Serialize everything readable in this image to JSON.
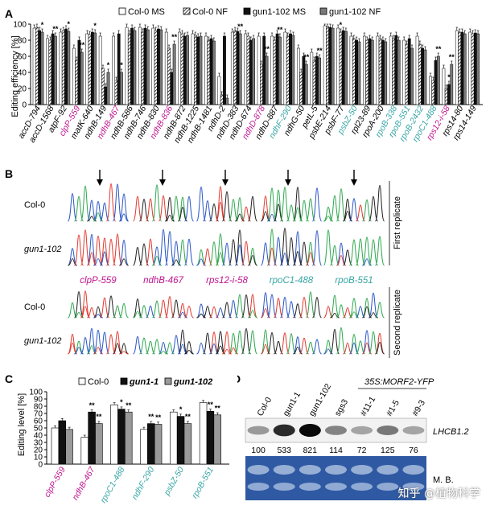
{
  "colors": {
    "col0_ms": "#ffffff",
    "col0_nf": "#bdbdbd",
    "gun_ms": "#111111",
    "gun_nf": "#7a7a7a",
    "magenta": "#c0158f",
    "teal": "#3aa6a6",
    "trace_A": "#2fa84f",
    "trace_C": "#2a56c6",
    "trace_G": "#222222",
    "trace_T": "#e03a2f",
    "gel_bg": "#2f5aa3"
  },
  "panelA": {
    "letter": "A",
    "legend": [
      "Col-0 MS",
      "Col-0 NF",
      "gun1-102 MS",
      "gun1-102 NF"
    ],
    "chart_data": {
      "type": "bar",
      "ylabel": "Editing efficiency [%]",
      "ylim": [
        0,
        100
      ],
      "yticks": [
        0,
        20,
        40,
        60,
        80,
        100
      ],
      "series_names": [
        "Col-0 MS",
        "Col-0 NF",
        "gun1-102 MS",
        "gun1-102 NF"
      ],
      "sites": [
        {
          "name": "accD-794",
          "color": "black",
          "values": [
            95,
            96,
            92,
            90
          ],
          "stars": [
            {
              "series": 3,
              "text": "*"
            }
          ]
        },
        {
          "name": "accD-1568",
          "color": "black",
          "values": [
            82,
            80,
            88,
            85
          ],
          "stars": [
            {
              "series": 3,
              "text": "**"
            }
          ]
        },
        {
          "name": "atpF-92",
          "color": "black",
          "values": [
            90,
            92,
            94,
            91
          ],
          "stars": [
            {
              "series": 3,
              "text": "*"
            }
          ]
        },
        {
          "name": "clpP-559",
          "color": "magenta",
          "values": [
            70,
            55,
            80,
            65
          ],
          "stars": [
            {
              "series": 3,
              "text": "**"
            }
          ]
        },
        {
          "name": "matK-640",
          "color": "black",
          "values": [
            88,
            87,
            90,
            89
          ],
          "stars": [
            {
              "series": 3,
              "text": "*"
            }
          ]
        },
        {
          "name": "ndhB-149",
          "color": "black",
          "values": [
            85,
            45,
            22,
            40
          ],
          "stars": [
            {
              "series": 3,
              "text": "*"
            }
          ]
        },
        {
          "name": "ndhB-467",
          "color": "magenta",
          "values": [
            85,
            30,
            88,
            40
          ],
          "stars": [
            {
              "series": 3,
              "text": "*"
            }
          ]
        },
        {
          "name": "ndhB-586",
          "color": "black",
          "values": [
            96,
            88,
            95,
            92
          ],
          "stars": []
        },
        {
          "name": "ndhB-746",
          "color": "black",
          "values": [
            96,
            90,
            95,
            93
          ],
          "stars": []
        },
        {
          "name": "ndhB-830",
          "color": "black",
          "values": [
            95,
            92,
            94,
            93
          ],
          "stars": []
        },
        {
          "name": "ndhB-836",
          "color": "magenta",
          "values": [
            90,
            70,
            40,
            75
          ],
          "stars": [
            {
              "series": 3,
              "text": "**"
            }
          ]
        },
        {
          "name": "ndhB-872",
          "color": "black",
          "values": [
            90,
            88,
            85,
            86
          ],
          "stars": []
        },
        {
          "name": "ndhB-1225",
          "color": "black",
          "values": [
            88,
            86,
            84,
            85
          ],
          "stars": []
        },
        {
          "name": "ndhB-1481",
          "color": "black",
          "values": [
            85,
            80,
            82,
            79
          ],
          "stars": []
        },
        {
          "name": "ndhD-2",
          "color": "black",
          "values": [
            35,
            12,
            85,
            8
          ],
          "stars": []
        },
        {
          "name": "ndhD-383",
          "color": "black",
          "values": [
            90,
            92,
            91,
            88
          ],
          "stars": [
            {
              "series": 3,
              "text": "**"
            }
          ]
        },
        {
          "name": "ndhD-674",
          "color": "black",
          "values": [
            88,
            85,
            80,
            82
          ],
          "stars": []
        },
        {
          "name": "ndhD-878",
          "color": "magenta",
          "values": [
            85,
            50,
            85,
            60
          ],
          "stars": [
            {
              "series": 3,
              "text": "**"
            }
          ]
        },
        {
          "name": "ndhD-887",
          "color": "black",
          "values": [
            85,
            80,
            88,
            84
          ],
          "stars": [
            {
              "series": 3,
              "text": "**"
            }
          ]
        },
        {
          "name": "ndhF-290",
          "color": "teal",
          "values": [
            90,
            85,
            88,
            86
          ],
          "stars": []
        },
        {
          "name": "ndhG-50",
          "color": "black",
          "values": [
            70,
            40,
            60,
            50
          ],
          "stars": [
            {
              "series": 3,
              "text": "**"
            }
          ]
        },
        {
          "name": "petL-5",
          "color": "black",
          "values": [
            65,
            55,
            60,
            58
          ],
          "stars": [
            {
              "series": 3,
              "text": "**"
            }
          ]
        },
        {
          "name": "psbE-214",
          "color": "black",
          "values": [
            98,
            97,
            96,
            95
          ],
          "stars": []
        },
        {
          "name": "psbF-77",
          "color": "black",
          "values": [
            95,
            90,
            92,
            91
          ],
          "stars": [
            {
              "series": 1,
              "text": "*"
            }
          ]
        },
        {
          "name": "psbZ-50",
          "color": "teal",
          "values": [
            85,
            82,
            80,
            78
          ],
          "stars": []
        },
        {
          "name": "rpl23-89",
          "color": "black",
          "values": [
            85,
            80,
            82,
            80
          ],
          "stars": []
        },
        {
          "name": "rpoA-200",
          "color": "black",
          "values": [
            85,
            82,
            80,
            78
          ],
          "stars": []
        },
        {
          "name": "rpoB-338",
          "color": "teal",
          "values": [
            85,
            82,
            86,
            80
          ],
          "stars": []
        },
        {
          "name": "rpoB-551",
          "color": "teal",
          "values": [
            80,
            75,
            82,
            70
          ],
          "stars": []
        },
        {
          "name": "rpoB-2432",
          "color": "teal",
          "values": [
            85,
            75,
            70,
            68
          ],
          "stars": []
        },
        {
          "name": "rpoC1-488",
          "color": "teal",
          "values": [
            35,
            30,
            55,
            60
          ],
          "stars": [
            {
              "series": 3,
              "text": "**"
            }
          ]
        },
        {
          "name": "rps12-i-58",
          "color": "magenta",
          "values": [
            45,
            20,
            25,
            50
          ],
          "stars": [
            {
              "series": 2,
              "text": "*"
            },
            {
              "series": 3,
              "text": "**"
            }
          ]
        },
        {
          "name": "rps14-80",
          "color": "black",
          "values": [
            92,
            90,
            90,
            88
          ],
          "stars": []
        },
        {
          "name": "rps14-149",
          "color": "black",
          "values": [
            90,
            88,
            89,
            88
          ],
          "stars": []
        }
      ]
    }
  },
  "panelB": {
    "letter": "B",
    "first_replicate": "First replicate",
    "second_replicate": "Second replicate",
    "row_labels": [
      "Col-0",
      "gun1-102",
      "Col-0",
      "gun1-102"
    ],
    "sites": [
      {
        "name": "clpP-559",
        "color": "magenta"
      },
      {
        "name": "ndhB-467",
        "color": "magenta"
      },
      {
        "name": "rps12-i-58",
        "color": "magenta"
      },
      {
        "name": "rpoC1-488",
        "color": "teal"
      },
      {
        "name": "rpoB-551",
        "color": "teal"
      }
    ]
  },
  "panelC": {
    "letter": "C",
    "legend": [
      "Col-0",
      "gun1-1",
      "gun1-102"
    ],
    "chart_data": {
      "type": "bar",
      "ylabel": "Editing level [%]",
      "ylim": [
        0,
        100
      ],
      "yticks": [
        0,
        10,
        20,
        30,
        40,
        50,
        60,
        70,
        80,
        90,
        100
      ],
      "series": [
        {
          "name": "Col-0",
          "values": [
            50,
            37,
            82,
            48,
            72,
            85
          ]
        },
        {
          "name": "gun1-1",
          "values": [
            60,
            72,
            76,
            56,
            66,
            73
          ]
        },
        {
          "name": "gun1-102",
          "values": [
            48,
            56,
            72,
            55,
            56,
            68
          ]
        }
      ],
      "categories": [
        {
          "name": "clpP-559",
          "color": "magenta",
          "stars": []
        },
        {
          "name": "ndhB-467",
          "color": "magenta",
          "stars": [
            {
              "series": 1,
              "text": "**"
            },
            {
              "series": 2,
              "text": "**"
            }
          ]
        },
        {
          "name": "rpoC1-488",
          "color": "teal",
          "stars": [
            {
              "series": 1,
              "text": "*"
            },
            {
              "series": 2,
              "text": "**"
            }
          ]
        },
        {
          "name": "ndhF-290",
          "color": "teal",
          "stars": [
            {
              "series": 1,
              "text": "**"
            },
            {
              "series": 2,
              "text": "**"
            }
          ]
        },
        {
          "name": "psbZ-50",
          "color": "teal",
          "stars": [
            {
              "series": 1,
              "text": "*"
            },
            {
              "series": 2,
              "text": "**"
            }
          ]
        },
        {
          "name": "rpoB-551",
          "color": "teal",
          "stars": [
            {
              "series": 1,
              "text": "**"
            },
            {
              "series": 2,
              "text": "**"
            }
          ]
        }
      ]
    }
  },
  "panelD": {
    "letter": "D",
    "construct_label": "35S:MORF2-YFP",
    "lanes": [
      "Col-0",
      "gun1-1",
      "gun1-102",
      "sgs3",
      "#11-1",
      "#1-5",
      "#9-3"
    ],
    "quant": [
      "100",
      "533",
      "821",
      "114",
      "72",
      "125",
      "76"
    ],
    "band_intensity": [
      0.35,
      0.85,
      1.0,
      0.45,
      0.3,
      0.5,
      0.3
    ],
    "probe_label": "LHCB1.2",
    "stain_label": "M. B."
  },
  "watermark": "知乎 @植物科学"
}
